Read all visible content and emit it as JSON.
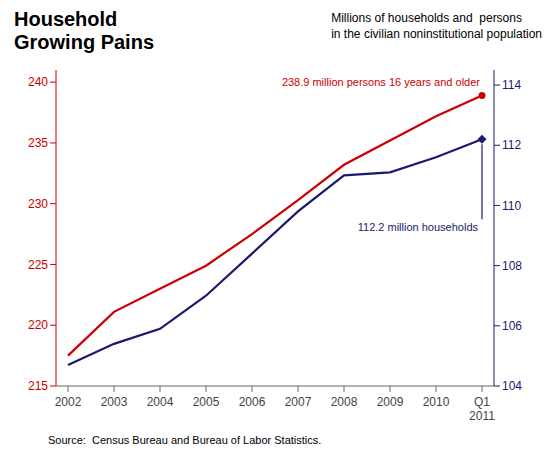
{
  "chart_data": {
    "type": "line",
    "title": "Household\nGrowing Pains",
    "subtitle": "Millions of households and  persons\nin the civilian noninstitutional population",
    "source": "Source:  Census Bureau and Bureau of Labor Statistics.",
    "categories": [
      "2002",
      "2003",
      "2004",
      "2005",
      "2006",
      "2007",
      "2008",
      "2009",
      "2010",
      "Q1\n2011"
    ],
    "series": [
      {
        "color": "#cc0000",
        "values": [
          217.5,
          221.1,
          223.0,
          224.9,
          227.5,
          230.3,
          233.2,
          235.2,
          237.2,
          238.9
        ]
      },
      {
        "color": "#1a1a6e",
        "axis": "y2",
        "values": [
          104.7,
          105.4,
          105.9,
          107.0,
          108.4,
          109.8,
          111.0,
          111.1,
          111.6,
          112.2
        ]
      }
    ],
    "annotations": [
      "238.9 million persons 16 years and older",
      "112.2 million households"
    ],
    "ylim": [
      215,
      241
    ],
    "yticks": [
      215,
      220,
      225,
      230,
      235,
      240
    ],
    "y2lim": [
      104,
      114.5
    ],
    "y2ticks": [
      104,
      106,
      108,
      110,
      112,
      114
    ],
    "grid": false
  }
}
